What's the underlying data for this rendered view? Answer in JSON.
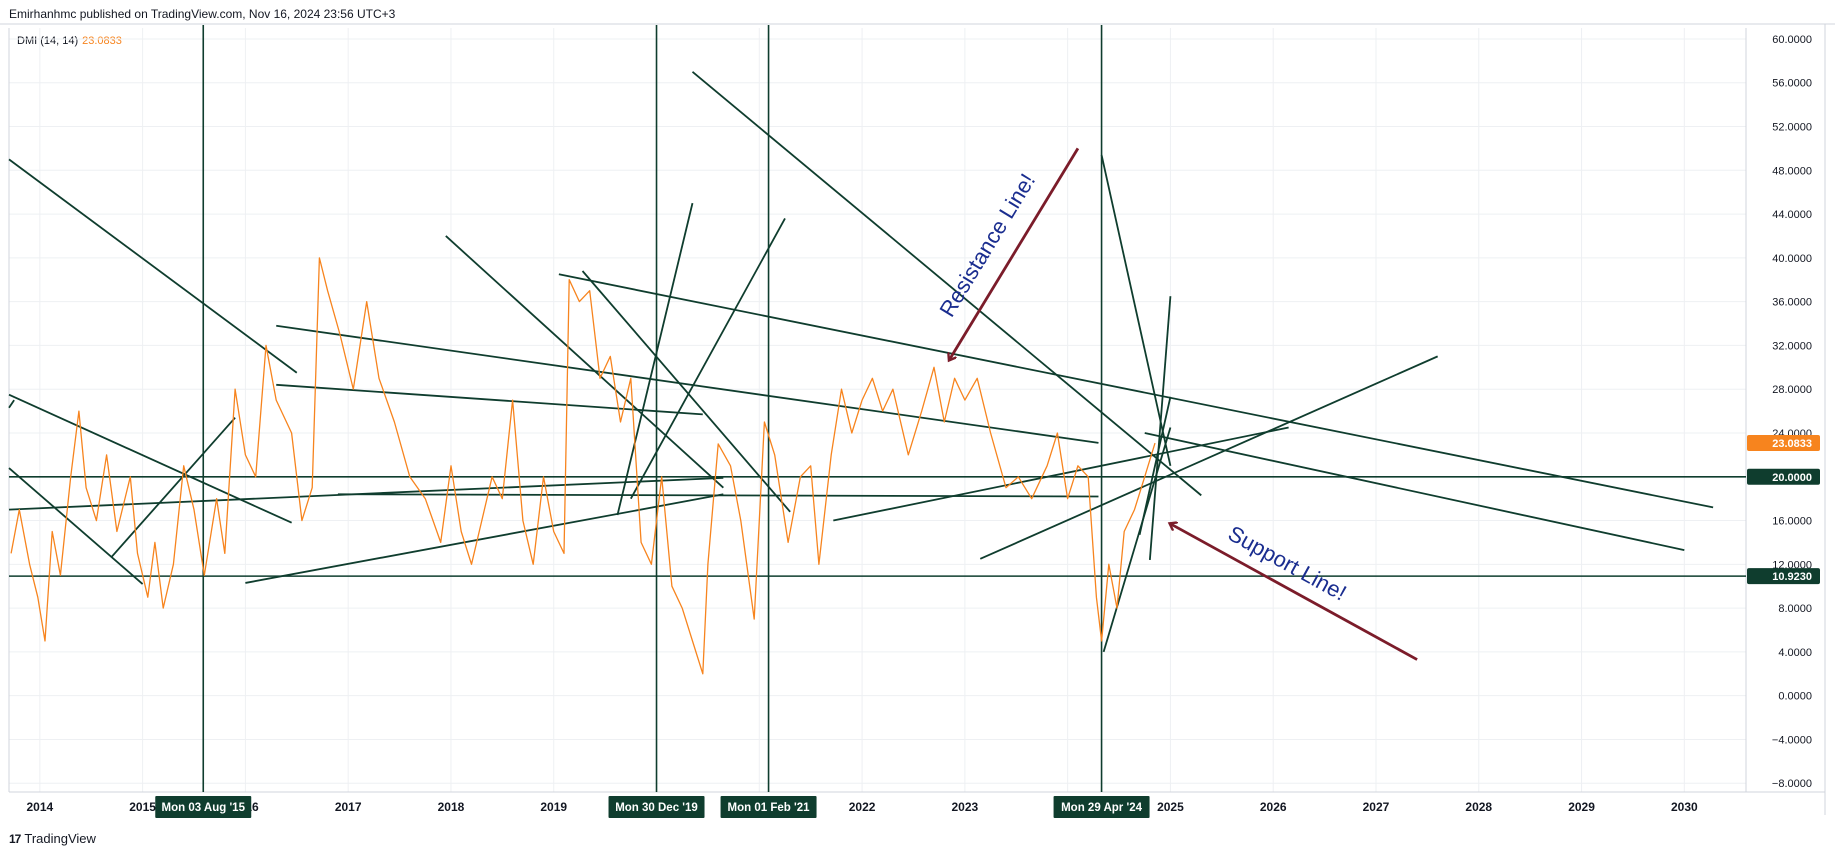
{
  "header": {
    "publish_line": "Emirhanhmc published on TradingView.com, Nov 16, 2024 23:56 UTC+3"
  },
  "indicator": {
    "name": "DMI (14, 14)",
    "value": "23.0833"
  },
  "footer": {
    "logo_text": "TradingView"
  },
  "colors": {
    "series": "#f7841e",
    "drawing_lines": "#0f3d2e",
    "arrow": "#7b1c2a",
    "annotation_text": "#1a2d8f",
    "current_value_badge": "#f7841e",
    "level_badge": "#0f3d2e",
    "grid": "#eef0f3"
  },
  "chart_data": {
    "type": "line",
    "title": "",
    "xlabel": "",
    "ylabel": "",
    "x_range": [
      2013.7,
      2030.6
    ],
    "ylim": [
      -8.8,
      61
    ],
    "y_ticks": [
      "60.0000",
      "56.0000",
      "52.0000",
      "48.0000",
      "44.0000",
      "40.0000",
      "36.0000",
      "32.0000",
      "28.0000",
      "24.0000",
      "20.0000",
      "16.0000",
      "12.0000",
      "8.0000",
      "4.0000",
      "0.0000",
      "−4.0000",
      "−8.0000"
    ],
    "x_ticks": [
      {
        "label": "2014",
        "year": 2014
      },
      {
        "label": "2015",
        "year": 2015
      },
      {
        "label": "2016",
        "year": 2016
      },
      {
        "label": "2017",
        "year": 2017
      },
      {
        "label": "2018",
        "year": 2018
      },
      {
        "label": "2019",
        "year": 2019
      },
      {
        "label": "2020",
        "year": 2020
      },
      {
        "label": "2021",
        "year": 2021
      },
      {
        "label": "2022",
        "year": 2022
      },
      {
        "label": "2023",
        "year": 2023
      },
      {
        "label": "2024",
        "year": 2024
      },
      {
        "label": "2025",
        "year": 2025
      },
      {
        "label": "2026",
        "year": 2026
      },
      {
        "label": "2027",
        "year": 2027
      },
      {
        "label": "2028",
        "year": 2028
      },
      {
        "label": "2029",
        "year": 2029
      },
      {
        "label": "2030",
        "year": 2030
      }
    ],
    "grid": true,
    "series": [
      {
        "points": [
          [
            2013.72,
            13
          ],
          [
            2013.8,
            17
          ],
          [
            2013.9,
            12
          ],
          [
            2013.98,
            9
          ],
          [
            2014.05,
            5
          ],
          [
            2014.12,
            15
          ],
          [
            2014.2,
            11
          ],
          [
            2014.3,
            20
          ],
          [
            2014.38,
            26
          ],
          [
            2014.45,
            19
          ],
          [
            2014.55,
            16
          ],
          [
            2014.65,
            22
          ],
          [
            2014.75,
            15
          ],
          [
            2014.88,
            20
          ],
          [
            2014.95,
            13
          ],
          [
            2015.05,
            9
          ],
          [
            2015.12,
            14
          ],
          [
            2015.2,
            8
          ],
          [
            2015.3,
            12
          ],
          [
            2015.4,
            21
          ],
          [
            2015.5,
            17
          ],
          [
            2015.6,
            11
          ],
          [
            2015.72,
            18
          ],
          [
            2015.8,
            13
          ],
          [
            2015.9,
            28
          ],
          [
            2016.0,
            22
          ],
          [
            2016.1,
            20
          ],
          [
            2016.2,
            32
          ],
          [
            2016.3,
            27
          ],
          [
            2016.45,
            24
          ],
          [
            2016.55,
            16
          ],
          [
            2016.65,
            19
          ],
          [
            2016.72,
            40
          ],
          [
            2016.8,
            37
          ],
          [
            2016.92,
            33
          ],
          [
            2017.05,
            28
          ],
          [
            2017.18,
            36
          ],
          [
            2017.3,
            29
          ],
          [
            2017.45,
            25
          ],
          [
            2017.6,
            20
          ],
          [
            2017.75,
            18
          ],
          [
            2017.9,
            14
          ],
          [
            2018.0,
            21
          ],
          [
            2018.1,
            15
          ],
          [
            2018.2,
            12
          ],
          [
            2018.3,
            16
          ],
          [
            2018.4,
            20
          ],
          [
            2018.5,
            18
          ],
          [
            2018.6,
            27
          ],
          [
            2018.7,
            16
          ],
          [
            2018.8,
            12
          ],
          [
            2018.9,
            20
          ],
          [
            2019.0,
            15
          ],
          [
            2019.1,
            13
          ],
          [
            2019.15,
            38
          ],
          [
            2019.25,
            36
          ],
          [
            2019.35,
            37
          ],
          [
            2019.45,
            29
          ],
          [
            2019.55,
            31
          ],
          [
            2019.65,
            25
          ],
          [
            2019.75,
            29
          ],
          [
            2019.85,
            14
          ],
          [
            2019.95,
            12
          ],
          [
            2020.05,
            20
          ],
          [
            2020.15,
            10
          ],
          [
            2020.25,
            8
          ],
          [
            2020.35,
            5
          ],
          [
            2020.45,
            2
          ],
          [
            2020.5,
            12
          ],
          [
            2020.6,
            23
          ],
          [
            2020.72,
            21
          ],
          [
            2020.82,
            16
          ],
          [
            2020.95,
            7
          ],
          [
            2021.05,
            25
          ],
          [
            2021.15,
            22
          ],
          [
            2021.28,
            14
          ],
          [
            2021.4,
            20
          ],
          [
            2021.5,
            21
          ],
          [
            2021.58,
            12
          ],
          [
            2021.7,
            22
          ],
          [
            2021.8,
            28
          ],
          [
            2021.9,
            24
          ],
          [
            2022.0,
            27
          ],
          [
            2022.1,
            29
          ],
          [
            2022.2,
            26
          ],
          [
            2022.3,
            28
          ],
          [
            2022.45,
            22
          ],
          [
            2022.58,
            26
          ],
          [
            2022.7,
            30
          ],
          [
            2022.8,
            25
          ],
          [
            2022.9,
            29
          ],
          [
            2023.0,
            27
          ],
          [
            2023.12,
            29
          ],
          [
            2023.25,
            24
          ],
          [
            2023.4,
            19
          ],
          [
            2023.52,
            20
          ],
          [
            2023.65,
            18
          ],
          [
            2023.8,
            21
          ],
          [
            2023.9,
            24
          ],
          [
            2024.0,
            18
          ],
          [
            2024.1,
            21
          ],
          [
            2024.2,
            20
          ],
          [
            2024.28,
            9
          ],
          [
            2024.33,
            5
          ],
          [
            2024.4,
            12
          ],
          [
            2024.48,
            8
          ],
          [
            2024.55,
            15
          ],
          [
            2024.65,
            17
          ],
          [
            2024.75,
            20
          ],
          [
            2024.85,
            23.08
          ]
        ]
      }
    ],
    "horizontal_levels": [
      {
        "value": 20,
        "label": "20.0000"
      },
      {
        "value": 10.923,
        "label": "10.9230"
      }
    ],
    "current_value": {
      "value": 23.0833,
      "label": "23.0833"
    },
    "vertical_markers": [
      {
        "year": 2015.59,
        "label": "Mon 03 Aug '15"
      },
      {
        "year": 2020.0,
        "label": "Mon 30 Dec '19"
      },
      {
        "year": 2021.09,
        "label": "Mon 01 Feb '21"
      },
      {
        "year": 2024.33,
        "label": "Mon 29 Apr '24"
      }
    ],
    "trend_lines": [
      [
        [
          2013.7,
          49
        ],
        [
          2016.5,
          29.5
        ]
      ],
      [
        [
          2013.7,
          27.5
        ],
        [
          2016.45,
          15.8
        ]
      ],
      [
        [
          2013.7,
          20.8
        ],
        [
          2015.0,
          10.2
        ]
      ],
      [
        [
          2013.7,
          26.3
        ],
        [
          2013.75,
          27
        ]
      ],
      [
        [
          2013.7,
          17
        ],
        [
          2020.65,
          19.9
        ]
      ],
      [
        [
          2014.7,
          12.7
        ],
        [
          2015.9,
          25.4
        ]
      ],
      [
        [
          2016.0,
          10.3
        ],
        [
          2020.65,
          18.4
        ]
      ],
      [
        [
          2016.3,
          33.8
        ],
        [
          2024.3,
          23.1
        ]
      ],
      [
        [
          2016.3,
          28.4
        ],
        [
          2020.45,
          25.7
        ]
      ],
      [
        [
          2016.9,
          18.4
        ],
        [
          2024.3,
          18.2
        ]
      ],
      [
        [
          2017.95,
          42
        ],
        [
          2020.65,
          19
        ]
      ],
      [
        [
          2019.05,
          38.5
        ],
        [
          2030.28,
          17.2
        ]
      ],
      [
        [
          2019.28,
          38.8
        ],
        [
          2021.3,
          16.8
        ]
      ],
      [
        [
          2019.62,
          16.5
        ],
        [
          2020.35,
          45
        ]
      ],
      [
        [
          2019.75,
          18
        ],
        [
          2021.25,
          43.6
        ]
      ],
      [
        [
          2020.35,
          57
        ],
        [
          2025.3,
          18.3
        ]
      ],
      [
        [
          2021.72,
          16
        ],
        [
          2026.15,
          24.5
        ]
      ],
      [
        [
          2023.15,
          12.5
        ],
        [
          2027.6,
          31
        ]
      ],
      [
        [
          2024.33,
          49.4
        ],
        [
          2025.0,
          21
        ]
      ],
      [
        [
          2024.35,
          4
        ],
        [
          2025.0,
          24.5
        ]
      ],
      [
        [
          2024.8,
          12.4
        ],
        [
          2025.0,
          36.5
        ]
      ],
      [
        [
          2024.7,
          14.7
        ],
        [
          2025.0,
          27.3
        ]
      ],
      [
        [
          2024.75,
          24
        ],
        [
          2030.0,
          13.3
        ]
      ]
    ],
    "annotations": [
      {
        "text": "Resistance Line!",
        "arrow_from": [
          2024.1,
          50
        ],
        "arrow_to": [
          2022.85,
          30.7
        ]
      },
      {
        "text": "Support Line!",
        "arrow_from": [
          2027.4,
          3.3
        ],
        "arrow_to": [
          2025.0,
          15.7
        ]
      }
    ]
  }
}
